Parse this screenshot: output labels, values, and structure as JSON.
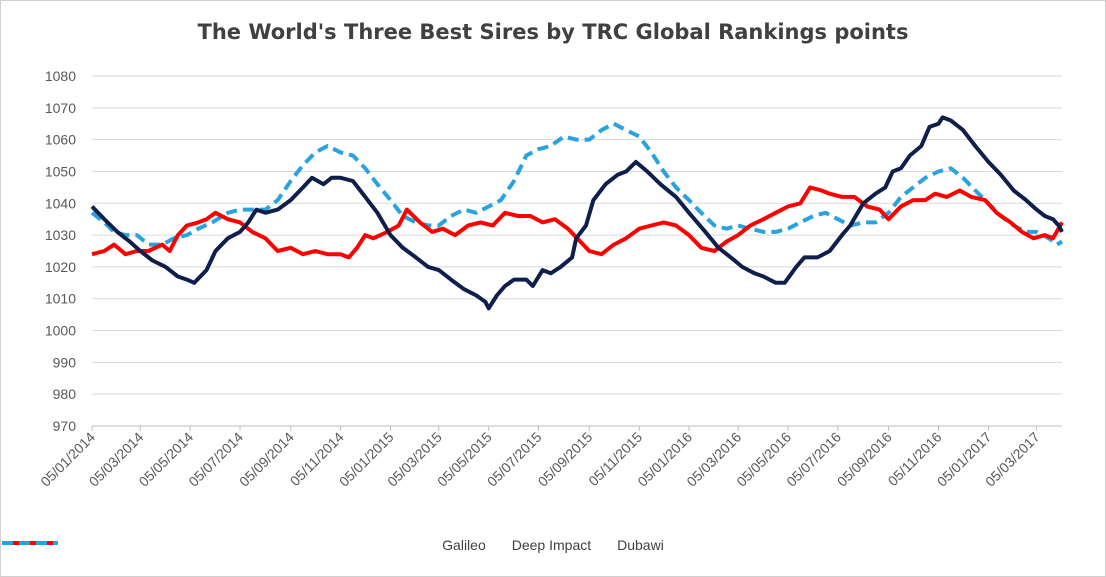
{
  "chart_data": {
    "type": "line",
    "title": "The World's Three Best Sires by TRC Global Rankings points",
    "xlabel": "",
    "ylabel": "",
    "ylim": [
      970,
      1080
    ],
    "yticks": [
      970,
      980,
      990,
      1000,
      1010,
      1020,
      1030,
      1040,
      1050,
      1060,
      1070,
      1080
    ],
    "x_range": [
      "2014-01-05",
      "2017-04-05"
    ],
    "xtick_labels": [
      "05/01/2014",
      "05/03/2014",
      "05/05/2014",
      "05/07/2014",
      "05/09/2014",
      "05/11/2014",
      "05/01/2015",
      "05/03/2015",
      "05/05/2015",
      "05/07/2015",
      "05/09/2015",
      "05/11/2015",
      "05/01/2016",
      "05/03/2016",
      "05/05/2016",
      "05/07/2016",
      "05/09/2016",
      "05/11/2016",
      "05/01/2017",
      "05/03/2017"
    ],
    "grid": true,
    "legend_position": "bottom",
    "series": [
      {
        "name": "Galileo",
        "color": "#0f1f4b",
        "dash": "solid",
        "points": [
          [
            "2014-01-05",
            1039
          ],
          [
            "2014-01-20",
            1035
          ],
          [
            "2014-02-05",
            1031
          ],
          [
            "2014-02-20",
            1028
          ],
          [
            "2014-03-05",
            1025
          ],
          [
            "2014-03-20",
            1022
          ],
          [
            "2014-04-05",
            1020
          ],
          [
            "2014-04-20",
            1017
          ],
          [
            "2014-05-01",
            1016
          ],
          [
            "2014-05-10",
            1015
          ],
          [
            "2014-05-25",
            1019
          ],
          [
            "2014-06-05",
            1025
          ],
          [
            "2014-06-20",
            1029
          ],
          [
            "2014-07-05",
            1031
          ],
          [
            "2014-07-15",
            1034
          ],
          [
            "2014-07-25",
            1038
          ],
          [
            "2014-08-05",
            1037
          ],
          [
            "2014-08-20",
            1038
          ],
          [
            "2014-09-05",
            1041
          ],
          [
            "2014-09-20",
            1045
          ],
          [
            "2014-10-01",
            1048
          ],
          [
            "2014-10-15",
            1046
          ],
          [
            "2014-10-25",
            1048
          ],
          [
            "2014-11-05",
            1048
          ],
          [
            "2014-11-20",
            1047
          ],
          [
            "2014-12-05",
            1042
          ],
          [
            "2014-12-20",
            1037
          ],
          [
            "2015-01-05",
            1030
          ],
          [
            "2015-01-20",
            1026
          ],
          [
            "2015-02-05",
            1023
          ],
          [
            "2015-02-20",
            1020
          ],
          [
            "2015-03-05",
            1019
          ],
          [
            "2015-03-20",
            1016
          ],
          [
            "2015-04-05",
            1013
          ],
          [
            "2015-04-20",
            1011
          ],
          [
            "2015-05-01",
            1009
          ],
          [
            "2015-05-05",
            1007
          ],
          [
            "2015-05-15",
            1011
          ],
          [
            "2015-05-25",
            1014
          ],
          [
            "2015-06-05",
            1016
          ],
          [
            "2015-06-20",
            1016
          ],
          [
            "2015-06-28",
            1014
          ],
          [
            "2015-07-10",
            1019
          ],
          [
            "2015-07-20",
            1018
          ],
          [
            "2015-08-01",
            1020
          ],
          [
            "2015-08-15",
            1023
          ],
          [
            "2015-08-20",
            1029
          ],
          [
            "2015-09-01",
            1033
          ],
          [
            "2015-09-10",
            1041
          ],
          [
            "2015-09-25",
            1046
          ],
          [
            "2015-10-10",
            1049
          ],
          [
            "2015-10-20",
            1050
          ],
          [
            "2015-11-01",
            1053
          ],
          [
            "2015-11-15",
            1050
          ],
          [
            "2015-12-01",
            1046
          ],
          [
            "2015-12-20",
            1042
          ],
          [
            "2016-01-05",
            1037
          ],
          [
            "2016-01-25",
            1031
          ],
          [
            "2016-02-10",
            1026
          ],
          [
            "2016-02-25",
            1023
          ],
          [
            "2016-03-10",
            1020
          ],
          [
            "2016-03-25",
            1018
          ],
          [
            "2016-04-05",
            1017
          ],
          [
            "2016-04-20",
            1015
          ],
          [
            "2016-05-01",
            1015
          ],
          [
            "2016-05-15",
            1020
          ],
          [
            "2016-05-25",
            1023
          ],
          [
            "2016-06-10",
            1023
          ],
          [
            "2016-06-25",
            1025
          ],
          [
            "2016-07-10",
            1030
          ],
          [
            "2016-07-20",
            1033
          ],
          [
            "2016-08-05",
            1040
          ],
          [
            "2016-08-20",
            1043
          ],
          [
            "2016-09-01",
            1045
          ],
          [
            "2016-09-10",
            1050
          ],
          [
            "2016-09-20",
            1051
          ],
          [
            "2016-10-01",
            1055
          ],
          [
            "2016-10-15",
            1058
          ],
          [
            "2016-10-25",
            1064
          ],
          [
            "2016-11-05",
            1065
          ],
          [
            "2016-11-10",
            1067
          ],
          [
            "2016-11-20",
            1066
          ],
          [
            "2016-12-05",
            1063
          ],
          [
            "2016-12-20",
            1058
          ],
          [
            "2017-01-05",
            1053
          ],
          [
            "2017-01-20",
            1049
          ],
          [
            "2017-02-05",
            1044
          ],
          [
            "2017-02-20",
            1041
          ],
          [
            "2017-03-05",
            1038
          ],
          [
            "2017-03-15",
            1036
          ],
          [
            "2017-03-25",
            1035
          ],
          [
            "2017-04-01",
            1033
          ],
          [
            "2017-04-05",
            1031
          ]
        ]
      },
      {
        "name": "Deep Impact",
        "color": "#ff0000",
        "dash": "solid",
        "points": [
          [
            "2014-01-05",
            1024
          ],
          [
            "2014-01-20",
            1025
          ],
          [
            "2014-02-01",
            1027
          ],
          [
            "2014-02-15",
            1024
          ],
          [
            "2014-03-01",
            1025
          ],
          [
            "2014-03-15",
            1025
          ],
          [
            "2014-04-01",
            1027
          ],
          [
            "2014-04-10",
            1025
          ],
          [
            "2014-04-20",
            1030
          ],
          [
            "2014-05-01",
            1033
          ],
          [
            "2014-05-15",
            1034
          ],
          [
            "2014-05-25",
            1035
          ],
          [
            "2014-06-05",
            1037
          ],
          [
            "2014-06-20",
            1035
          ],
          [
            "2014-07-05",
            1034
          ],
          [
            "2014-07-20",
            1031
          ],
          [
            "2014-08-05",
            1029
          ],
          [
            "2014-08-20",
            1025
          ],
          [
            "2014-09-05",
            1026
          ],
          [
            "2014-09-20",
            1024
          ],
          [
            "2014-10-05",
            1025
          ],
          [
            "2014-10-20",
            1024
          ],
          [
            "2014-11-05",
            1024
          ],
          [
            "2014-11-15",
            1023
          ],
          [
            "2014-11-25",
            1026
          ],
          [
            "2014-12-05",
            1030
          ],
          [
            "2014-12-15",
            1029
          ],
          [
            "2015-01-01",
            1031
          ],
          [
            "2015-01-15",
            1033
          ],
          [
            "2015-01-25",
            1038
          ],
          [
            "2015-02-10",
            1034
          ],
          [
            "2015-02-25",
            1031
          ],
          [
            "2015-03-10",
            1032
          ],
          [
            "2015-03-25",
            1030
          ],
          [
            "2015-04-10",
            1033
          ],
          [
            "2015-04-25",
            1034
          ],
          [
            "2015-05-10",
            1033
          ],
          [
            "2015-05-25",
            1037
          ],
          [
            "2015-06-10",
            1036
          ],
          [
            "2015-06-25",
            1036
          ],
          [
            "2015-07-10",
            1034
          ],
          [
            "2015-07-25",
            1035
          ],
          [
            "2015-08-10",
            1032
          ],
          [
            "2015-08-25",
            1028
          ],
          [
            "2015-09-05",
            1025
          ],
          [
            "2015-09-20",
            1024
          ],
          [
            "2015-10-05",
            1027
          ],
          [
            "2015-10-20",
            1029
          ],
          [
            "2015-11-05",
            1032
          ],
          [
            "2015-11-20",
            1033
          ],
          [
            "2015-12-05",
            1034
          ],
          [
            "2015-12-20",
            1033
          ],
          [
            "2016-01-05",
            1030
          ],
          [
            "2016-01-20",
            1026
          ],
          [
            "2016-02-05",
            1025
          ],
          [
            "2016-02-20",
            1028
          ],
          [
            "2016-03-05",
            1030
          ],
          [
            "2016-03-20",
            1033
          ],
          [
            "2016-04-05",
            1035
          ],
          [
            "2016-04-20",
            1037
          ],
          [
            "2016-05-05",
            1039
          ],
          [
            "2016-05-20",
            1040
          ],
          [
            "2016-06-01",
            1045
          ],
          [
            "2016-06-15",
            1044
          ],
          [
            "2016-06-25",
            1043
          ],
          [
            "2016-07-10",
            1042
          ],
          [
            "2016-07-25",
            1042
          ],
          [
            "2016-08-10",
            1039
          ],
          [
            "2016-08-25",
            1038
          ],
          [
            "2016-09-05",
            1035
          ],
          [
            "2016-09-20",
            1039
          ],
          [
            "2016-10-05",
            1041
          ],
          [
            "2016-10-20",
            1041
          ],
          [
            "2016-11-01",
            1043
          ],
          [
            "2016-11-15",
            1042
          ],
          [
            "2016-12-01",
            1044
          ],
          [
            "2016-12-15",
            1042
          ],
          [
            "2017-01-01",
            1041
          ],
          [
            "2017-01-15",
            1037
          ],
          [
            "2017-02-01",
            1034
          ],
          [
            "2017-02-15",
            1031
          ],
          [
            "2017-03-01",
            1029
          ],
          [
            "2017-03-15",
            1030
          ],
          [
            "2017-03-25",
            1029
          ],
          [
            "2017-04-05",
            1034
          ]
        ]
      },
      {
        "name": "Dubawi",
        "color": "#29a3e0",
        "dash": "dashed",
        "points": [
          [
            "2014-01-05",
            1037
          ],
          [
            "2014-01-20",
            1034
          ],
          [
            "2014-02-01",
            1031
          ],
          [
            "2014-02-15",
            1030
          ],
          [
            "2014-03-01",
            1030
          ],
          [
            "2014-03-15",
            1027
          ],
          [
            "2014-04-01",
            1027
          ],
          [
            "2014-04-15",
            1029
          ],
          [
            "2014-05-01",
            1030
          ],
          [
            "2014-05-15",
            1032
          ],
          [
            "2014-06-01",
            1034
          ],
          [
            "2014-06-20",
            1037
          ],
          [
            "2014-07-05",
            1038
          ],
          [
            "2014-07-20",
            1038
          ],
          [
            "2014-08-05",
            1038
          ],
          [
            "2014-08-20",
            1041
          ],
          [
            "2014-09-05",
            1047
          ],
          [
            "2014-09-20",
            1052
          ],
          [
            "2014-10-05",
            1056
          ],
          [
            "2014-10-20",
            1058
          ],
          [
            "2014-11-05",
            1056
          ],
          [
            "2014-11-20",
            1055
          ],
          [
            "2014-12-05",
            1051
          ],
          [
            "2014-12-20",
            1046
          ],
          [
            "2015-01-05",
            1041
          ],
          [
            "2015-01-20",
            1036
          ],
          [
            "2015-02-05",
            1034
          ],
          [
            "2015-02-20",
            1033
          ],
          [
            "2015-03-05",
            1033
          ],
          [
            "2015-03-20",
            1036
          ],
          [
            "2015-04-05",
            1038
          ],
          [
            "2015-04-20",
            1037
          ],
          [
            "2015-05-05",
            1039
          ],
          [
            "2015-05-20",
            1041
          ],
          [
            "2015-06-05",
            1047
          ],
          [
            "2015-06-20",
            1055
          ],
          [
            "2015-07-05",
            1057
          ],
          [
            "2015-07-20",
            1058
          ],
          [
            "2015-08-05",
            1061
          ],
          [
            "2015-08-20",
            1060
          ],
          [
            "2015-09-05",
            1060
          ],
          [
            "2015-09-20",
            1063
          ],
          [
            "2015-10-05",
            1065
          ],
          [
            "2015-10-20",
            1063
          ],
          [
            "2015-11-05",
            1061
          ],
          [
            "2015-11-20",
            1056
          ],
          [
            "2015-12-05",
            1050
          ],
          [
            "2015-12-20",
            1045
          ],
          [
            "2016-01-05",
            1041
          ],
          [
            "2016-01-20",
            1037
          ],
          [
            "2016-02-05",
            1033
          ],
          [
            "2016-02-20",
            1032
          ],
          [
            "2016-03-05",
            1033
          ],
          [
            "2016-03-20",
            1032
          ],
          [
            "2016-04-05",
            1031
          ],
          [
            "2016-04-20",
            1031
          ],
          [
            "2016-05-05",
            1032
          ],
          [
            "2016-05-20",
            1034
          ],
          [
            "2016-06-05",
            1036
          ],
          [
            "2016-06-20",
            1037
          ],
          [
            "2016-07-05",
            1035
          ],
          [
            "2016-07-20",
            1033
          ],
          [
            "2016-08-05",
            1034
          ],
          [
            "2016-08-20",
            1034
          ],
          [
            "2016-09-05",
            1037
          ],
          [
            "2016-09-20",
            1042
          ],
          [
            "2016-10-05",
            1045
          ],
          [
            "2016-10-20",
            1048
          ],
          [
            "2016-11-05",
            1050
          ],
          [
            "2016-11-20",
            1051
          ],
          [
            "2016-12-05",
            1048
          ],
          [
            "2016-12-20",
            1044
          ],
          [
            "2017-01-05",
            1040
          ],
          [
            "2017-01-20",
            1036
          ],
          [
            "2017-02-05",
            1033
          ],
          [
            "2017-02-20",
            1031
          ],
          [
            "2017-03-05",
            1031
          ],
          [
            "2017-03-20",
            1029
          ],
          [
            "2017-03-30",
            1027
          ],
          [
            "2017-04-05",
            1028
          ]
        ]
      }
    ]
  }
}
